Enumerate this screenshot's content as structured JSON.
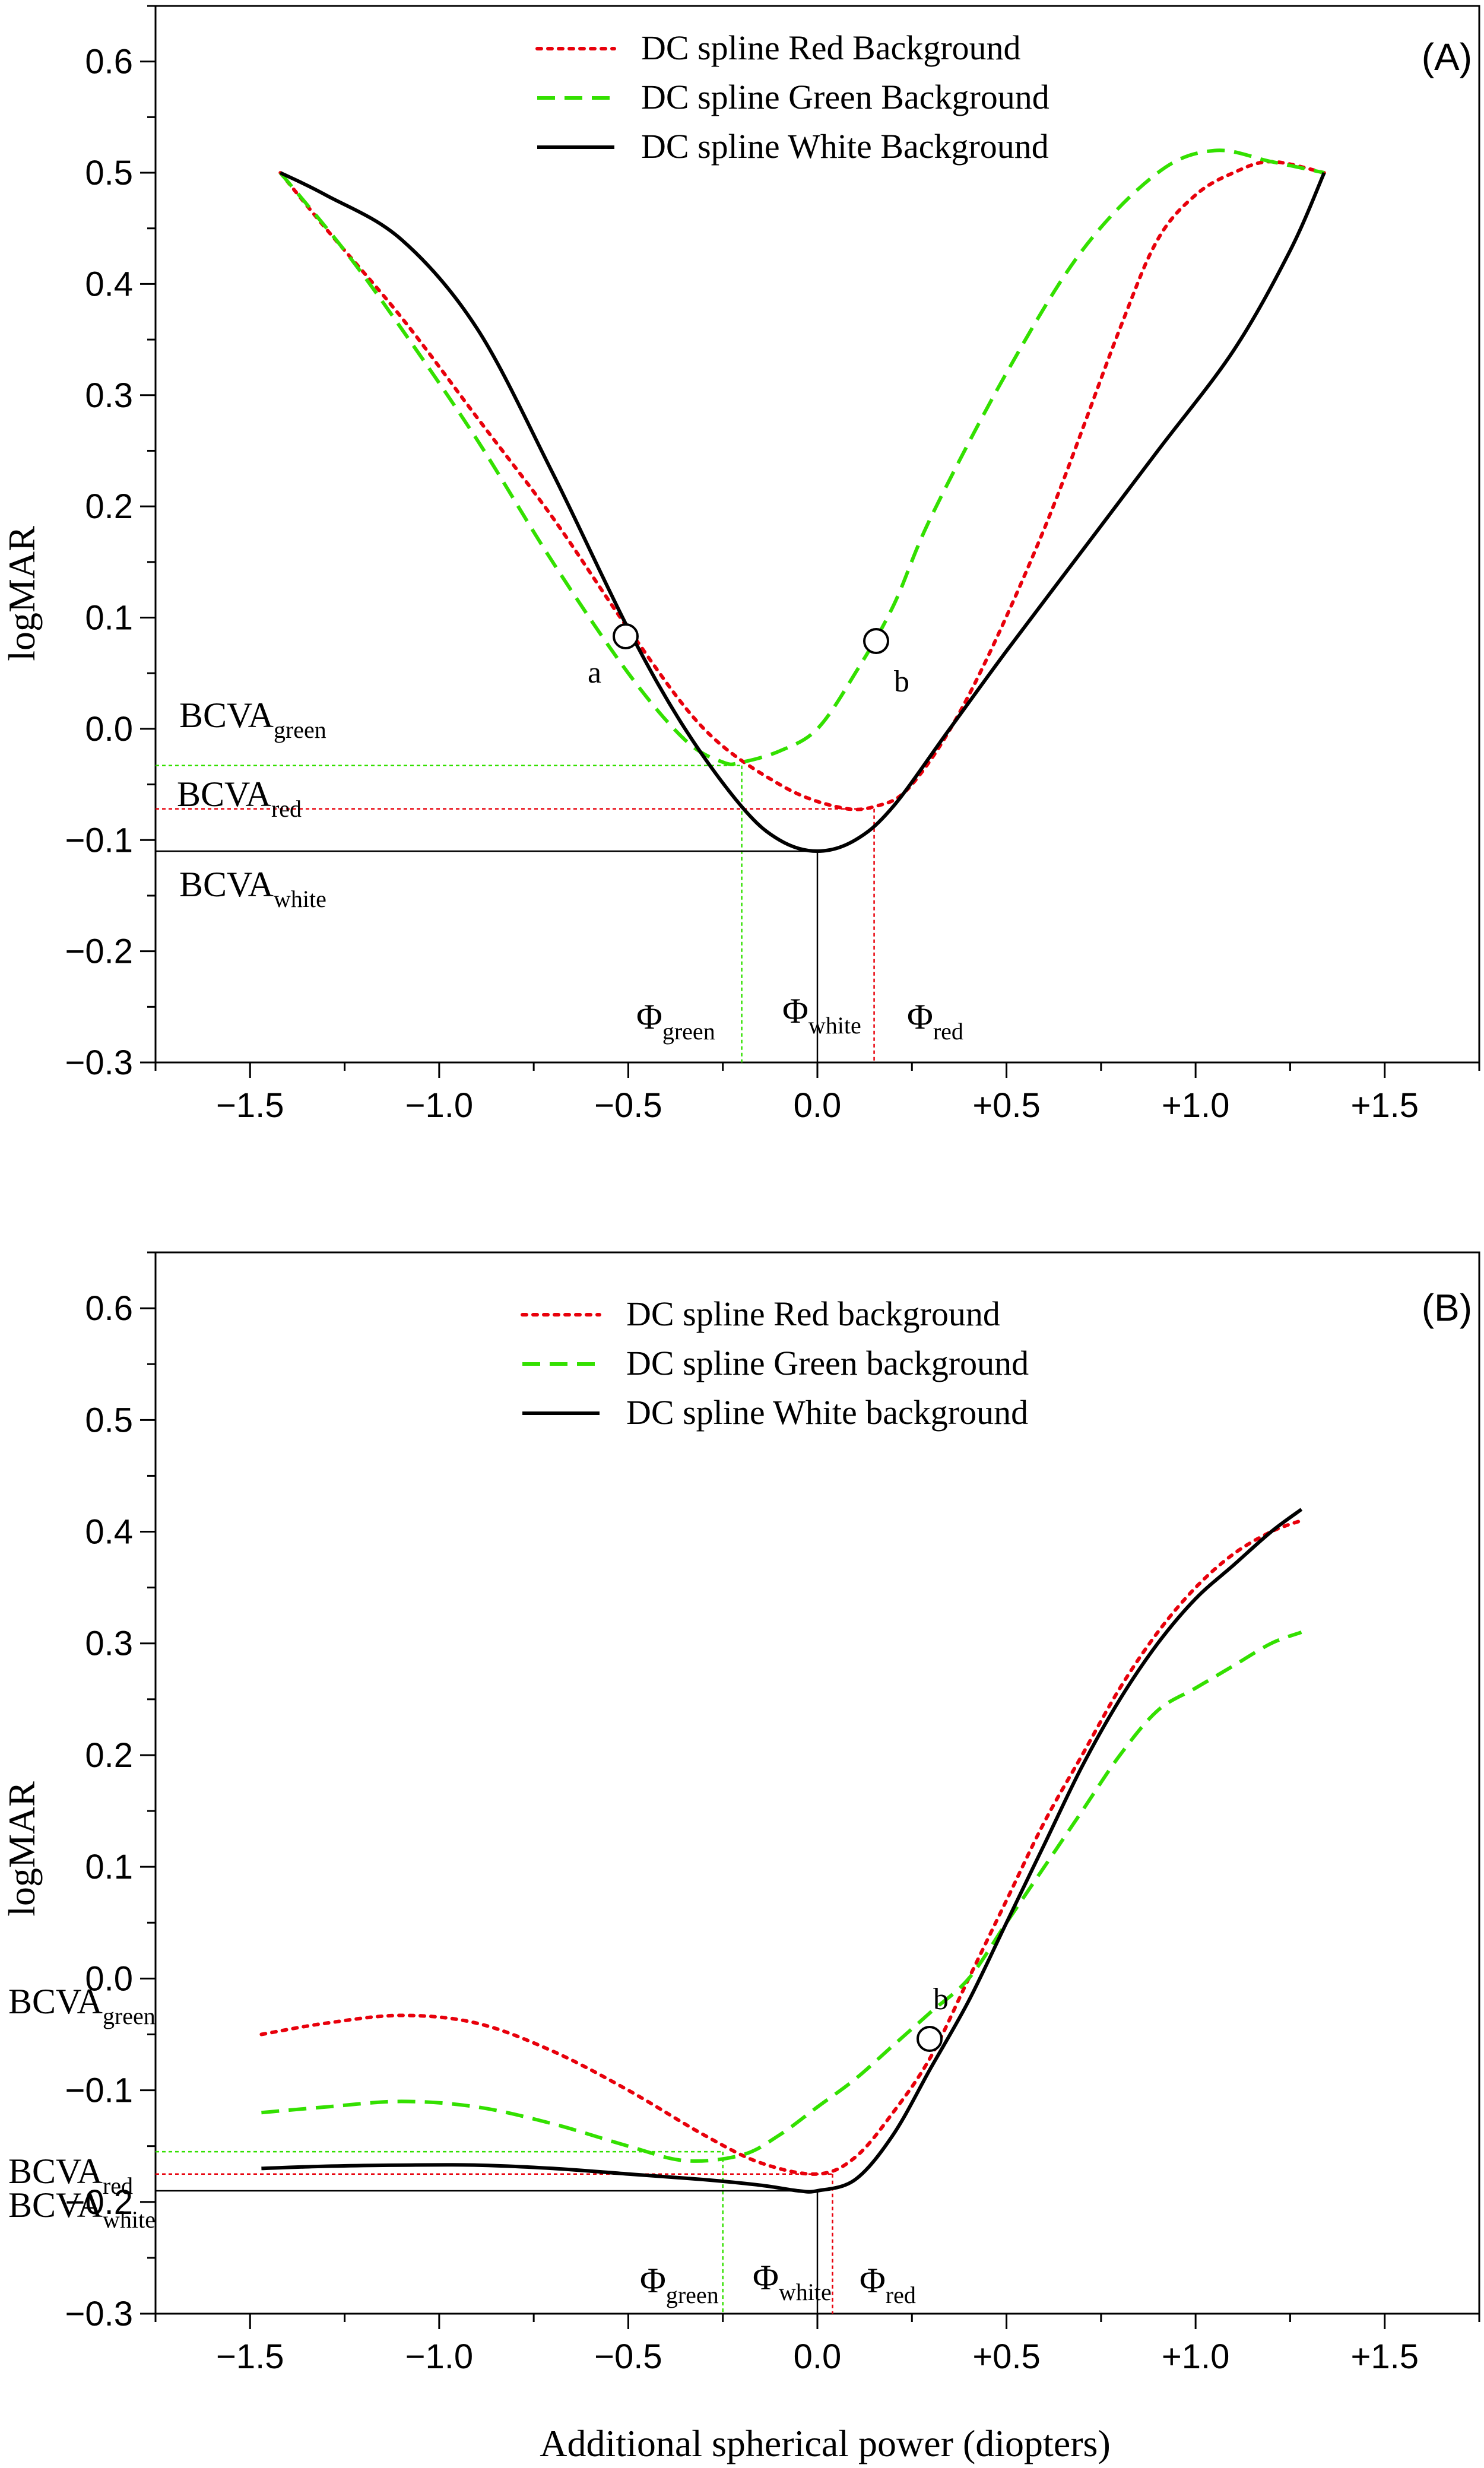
{
  "chart_data": [
    {
      "type": "line",
      "panel_label": "(A)",
      "xlabel": "",
      "ylabel": "logMAR",
      "xlim": [
        -1.75,
        1.75
      ],
      "ylim": [
        -0.3,
        0.65
      ],
      "x_ticks": [
        -1.5,
        -1.0,
        -0.5,
        0.0,
        0.5,
        1.0,
        1.5
      ],
      "x_tick_labels": [
        "−1.5",
        "−1.0",
        "−0.5",
        "0.0",
        "+0.5",
        "+1.0",
        "+1.5"
      ],
      "y_ticks": [
        -0.3,
        -0.2,
        -0.1,
        0.0,
        0.1,
        0.2,
        0.3,
        0.4,
        0.5,
        0.6
      ],
      "y_tick_labels": [
        "−0.3",
        "−0.2",
        "−0.1",
        "0.0",
        "0.1",
        "0.2",
        "0.3",
        "0.4",
        "0.5",
        "0.6"
      ],
      "legend_position": "top-center",
      "series": [
        {
          "name": "DC spline Red Background",
          "color": "#e8000b",
          "style": "dotted",
          "points": [
            [
              -1.42,
              0.5
            ],
            [
              -1.3,
              0.45
            ],
            [
              -1.1,
              0.37
            ],
            [
              -0.9,
              0.28
            ],
            [
              -0.7,
              0.19
            ],
            [
              -0.5,
              0.09
            ],
            [
              -0.3,
              0.0
            ],
            [
              -0.1,
              -0.05
            ],
            [
              0.05,
              -0.07
            ],
            [
              0.15,
              -0.07
            ],
            [
              0.25,
              -0.05
            ],
            [
              0.4,
              0.03
            ],
            [
              0.6,
              0.18
            ],
            [
              0.8,
              0.36
            ],
            [
              0.9,
              0.44
            ],
            [
              1.0,
              0.48
            ],
            [
              1.1,
              0.5
            ],
            [
              1.2,
              0.51
            ],
            [
              1.34,
              0.5
            ]
          ]
        },
        {
          "name": "DC spline Green Background",
          "color": "#33e000",
          "style": "dashed",
          "points": [
            [
              -1.42,
              0.5
            ],
            [
              -1.25,
              0.43
            ],
            [
              -1.1,
              0.36
            ],
            [
              -0.9,
              0.26
            ],
            [
              -0.7,
              0.15
            ],
            [
              -0.5,
              0.05
            ],
            [
              -0.35,
              -0.01
            ],
            [
              -0.25,
              -0.03
            ],
            [
              -0.2,
              -0.03
            ],
            [
              -0.1,
              -0.02
            ],
            [
              0.0,
              0.0
            ],
            [
              0.1,
              0.05
            ],
            [
              0.2,
              0.11
            ],
            [
              0.3,
              0.19
            ],
            [
              0.5,
              0.32
            ],
            [
              0.7,
              0.43
            ],
            [
              0.9,
              0.5
            ],
            [
              1.05,
              0.52
            ],
            [
              1.2,
              0.51
            ],
            [
              1.34,
              0.5
            ]
          ]
        },
        {
          "name": "DC spline White Background",
          "color": "#000000",
          "style": "solid",
          "points": [
            [
              -1.42,
              0.5
            ],
            [
              -1.3,
              0.48
            ],
            [
              -1.1,
              0.44
            ],
            [
              -0.9,
              0.36
            ],
            [
              -0.7,
              0.23
            ],
            [
              -0.5,
              0.09
            ],
            [
              -0.35,
              0.0
            ],
            [
              -0.2,
              -0.07
            ],
            [
              -0.1,
              -0.1
            ],
            [
              0.0,
              -0.11
            ],
            [
              0.1,
              -0.1
            ],
            [
              0.2,
              -0.07
            ],
            [
              0.35,
              0.0
            ],
            [
              0.5,
              0.07
            ],
            [
              0.7,
              0.16
            ],
            [
              0.9,
              0.25
            ],
            [
              1.1,
              0.34
            ],
            [
              1.25,
              0.43
            ],
            [
              1.34,
              0.5
            ]
          ]
        }
      ],
      "reference_lines": [
        {
          "name": "BCVA_green",
          "y": -0.033,
          "x_end": -0.2,
          "color": "#33e000"
        },
        {
          "name": "BCVA_red",
          "y": -0.072,
          "x_end": 0.15,
          "color": "#e8000b"
        },
        {
          "name": "BCVA_white",
          "y": -0.11,
          "x_end": 0.0,
          "color": "#000000"
        }
      ],
      "annotations": {
        "bcva_green": {
          "main": "BCVA",
          "sub": "green"
        },
        "bcva_red": {
          "main": "BCVA",
          "sub": "red"
        },
        "bcva_white": {
          "main": "BCVA",
          "sub": "white"
        },
        "phi_green": {
          "main": "Φ",
          "sub": "green"
        },
        "phi_white": {
          "main": "Φ",
          "sub": "white"
        },
        "phi_red": {
          "main": "Φ",
          "sub": "red"
        },
        "points": [
          {
            "label": "a",
            "x": -0.53,
            "y": 0.08
          },
          {
            "label": "b",
            "x": 0.14,
            "y": 0.077
          }
        ]
      }
    },
    {
      "type": "line",
      "panel_label": "(B)",
      "xlabel": "Additional spherical power (diopters)",
      "ylabel": "logMAR",
      "xlim": [
        -1.75,
        1.75
      ],
      "ylim": [
        -0.3,
        0.65
      ],
      "x_ticks": [
        -1.5,
        -1.0,
        -0.5,
        0.0,
        0.5,
        1.0,
        1.5
      ],
      "x_tick_labels": [
        "−1.5",
        "−1.0",
        "−0.5",
        "0.0",
        "+0.5",
        "+1.0",
        "+1.5"
      ],
      "y_ticks": [
        -0.3,
        -0.2,
        -0.1,
        0.0,
        0.1,
        0.2,
        0.3,
        0.4,
        0.5,
        0.6
      ],
      "y_tick_labels": [
        "−0.3",
        "−0.2",
        "−0.1",
        "0.0",
        "0.1",
        "0.2",
        "0.3",
        "0.4",
        "0.5",
        "0.6"
      ],
      "legend_position": "top-center",
      "series": [
        {
          "name": "DC spline Red background",
          "color": "#e8000b",
          "style": "dotted",
          "points": [
            [
              -1.47,
              -0.05
            ],
            [
              -1.3,
              -0.04
            ],
            [
              -1.1,
              -0.033
            ],
            [
              -0.9,
              -0.04
            ],
            [
              -0.7,
              -0.065
            ],
            [
              -0.5,
              -0.1
            ],
            [
              -0.3,
              -0.14
            ],
            [
              -0.15,
              -0.165
            ],
            [
              0.0,
              -0.175
            ],
            [
              0.1,
              -0.16
            ],
            [
              0.2,
              -0.12
            ],
            [
              0.3,
              -0.07
            ],
            [
              0.4,
              0.0
            ],
            [
              0.5,
              0.07
            ],
            [
              0.6,
              0.14
            ],
            [
              0.7,
              0.2
            ],
            [
              0.8,
              0.26
            ],
            [
              0.9,
              0.31
            ],
            [
              1.0,
              0.35
            ],
            [
              1.1,
              0.38
            ],
            [
              1.2,
              0.4
            ],
            [
              1.28,
              0.41
            ]
          ]
        },
        {
          "name": "DC spline Green background",
          "color": "#33e000",
          "style": "dashed",
          "points": [
            [
              -1.47,
              -0.12
            ],
            [
              -1.3,
              -0.115
            ],
            [
              -1.1,
              -0.11
            ],
            [
              -0.9,
              -0.115
            ],
            [
              -0.7,
              -0.13
            ],
            [
              -0.5,
              -0.15
            ],
            [
              -0.35,
              -0.163
            ],
            [
              -0.2,
              -0.158
            ],
            [
              -0.1,
              -0.14
            ],
            [
              0.0,
              -0.115
            ],
            [
              0.1,
              -0.09
            ],
            [
              0.2,
              -0.06
            ],
            [
              0.3,
              -0.03
            ],
            [
              0.4,
              0.0
            ],
            [
              0.5,
              0.05
            ],
            [
              0.6,
              0.1
            ],
            [
              0.7,
              0.15
            ],
            [
              0.8,
              0.2
            ],
            [
              0.9,
              0.24
            ],
            [
              1.0,
              0.26
            ],
            [
              1.1,
              0.28
            ],
            [
              1.2,
              0.3
            ],
            [
              1.28,
              0.31
            ]
          ]
        },
        {
          "name": "DC spline White background",
          "color": "#000000",
          "style": "solid",
          "points": [
            [
              -1.47,
              -0.17
            ],
            [
              -1.3,
              -0.168
            ],
            [
              -1.1,
              -0.167
            ],
            [
              -0.9,
              -0.167
            ],
            [
              -0.7,
              -0.17
            ],
            [
              -0.5,
              -0.175
            ],
            [
              -0.3,
              -0.18
            ],
            [
              -0.15,
              -0.185
            ],
            [
              -0.05,
              -0.19
            ],
            [
              0.0,
              -0.19
            ],
            [
              0.1,
              -0.18
            ],
            [
              0.2,
              -0.14
            ],
            [
              0.3,
              -0.08
            ],
            [
              0.4,
              -0.02
            ],
            [
              0.5,
              0.05
            ],
            [
              0.6,
              0.12
            ],
            [
              0.7,
              0.19
            ],
            [
              0.8,
              0.25
            ],
            [
              0.9,
              0.3
            ],
            [
              1.0,
              0.34
            ],
            [
              1.1,
              0.37
            ],
            [
              1.2,
              0.4
            ],
            [
              1.28,
              0.42
            ]
          ]
        }
      ],
      "reference_lines": [
        {
          "name": "BCVA_green",
          "y": -0.155,
          "x_end": -0.25,
          "color": "#33e000"
        },
        {
          "name": "BCVA_red",
          "y": -0.175,
          "x_end": 0.04,
          "color": "#e8000b"
        },
        {
          "name": "BCVA_white",
          "y": -0.19,
          "x_end": 0.0,
          "color": "#000000"
        }
      ],
      "annotations": {
        "bcva_green": {
          "main": "BCVA",
          "sub": "green"
        },
        "bcva_red": {
          "main": "BCVA",
          "sub": "red"
        },
        "bcva_white": {
          "main": "BCVA",
          "sub": "white"
        },
        "phi_green": {
          "main": "Φ",
          "sub": "green"
        },
        "phi_white": {
          "main": "Φ",
          "sub": "white"
        },
        "phi_red": {
          "main": "Φ",
          "sub": "red"
        },
        "points": [
          {
            "label": "b",
            "x": 0.28,
            "y": -0.054
          }
        ]
      }
    }
  ]
}
